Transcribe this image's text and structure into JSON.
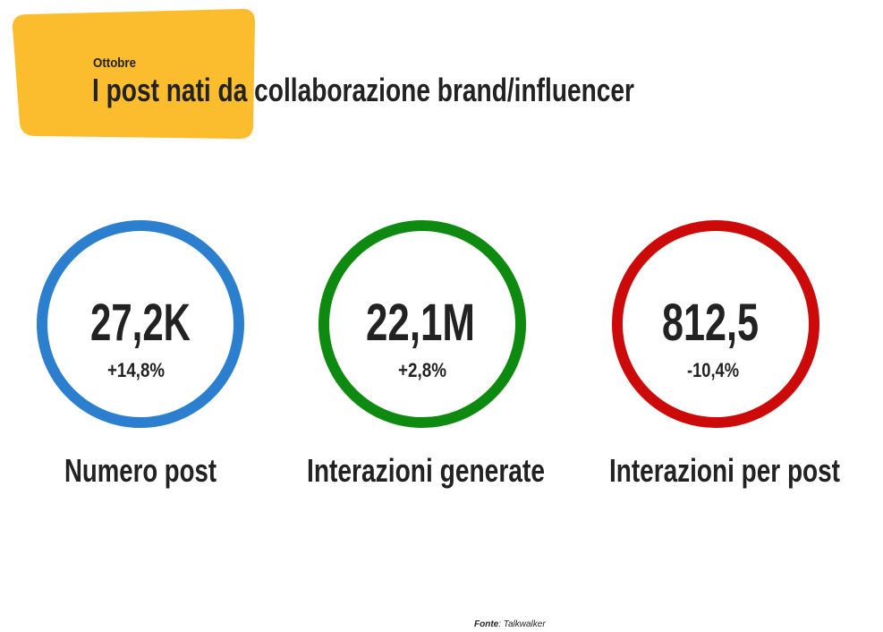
{
  "header": {
    "subtitle": "Ottobre",
    "title": "I post nati da collaborazione brand/influencer"
  },
  "kpis": [
    {
      "value": "27,2K",
      "change": "+14,8%",
      "label": "Numero post"
    },
    {
      "value": "22,1M",
      "change": "+2,8%",
      "label": "Interazioni generate"
    },
    {
      "value": "812,5",
      "change": "-10,4%",
      "label": "Interazioni per post"
    }
  ],
  "source": {
    "label": "Fonte",
    "text": ": Talkwalker"
  }
}
